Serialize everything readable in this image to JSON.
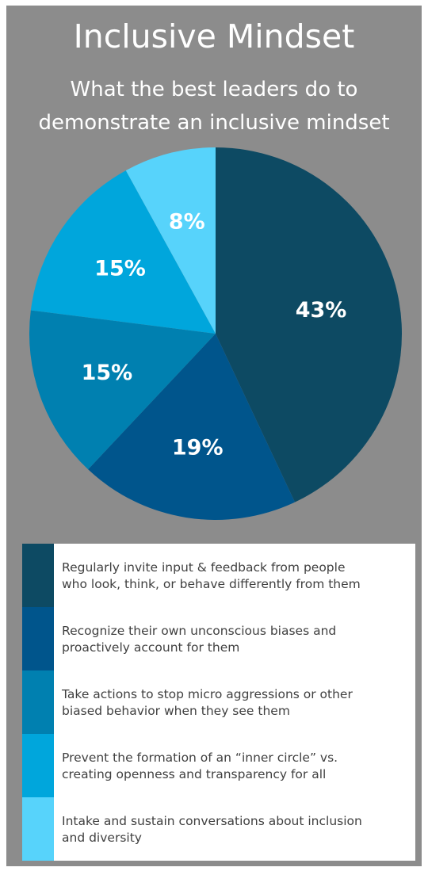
{
  "title": "Inclusive Mindset",
  "subtitle_line1": "What the best leaders do to",
  "subtitle_line2": "demonstrate an inclusive mindset",
  "chart_data": {
    "type": "pie",
    "title": "Inclusive Mindset",
    "subtitle": "What the best leaders do to demonstrate an inclusive mindset",
    "categories": [
      "Regularly invite input & feedback from people who look, think, or behave differently from them",
      "Recognize their own unconscious biases and proactively account for them",
      "Take actions to stop micro aggressions or other biased behavior when they see them",
      "Prevent the formation of an “inner circle” vs. creating openness and transparency for all",
      "Intake and sustain conversations about inclusion and diversity"
    ],
    "values": [
      43,
      19,
      15,
      15,
      8
    ],
    "labels": [
      "43%",
      "19%",
      "15%",
      "15%",
      "8%"
    ],
    "colors": [
      "#0d4a63",
      "#00558c",
      "#0080b0",
      "#00a6dc",
      "#57d3fb"
    ],
    "legend_position": "bottom"
  },
  "legend": [
    {
      "line1": "Regularly invite input & feedback from people",
      "line2": "who look, think, or behave differently from them"
    },
    {
      "line1": "Recognize their own unconscious biases and",
      "line2": "proactively account for them"
    },
    {
      "line1": "Take actions to stop micro aggressions or other",
      "line2": "biased behavior when they see them"
    },
    {
      "line1": "Prevent the formation of an “inner circle” vs.",
      "line2": "creating openness and transparency for all"
    },
    {
      "line1": "Intake and sustain conversations about inclusion",
      "line2": "and diversity"
    }
  ]
}
